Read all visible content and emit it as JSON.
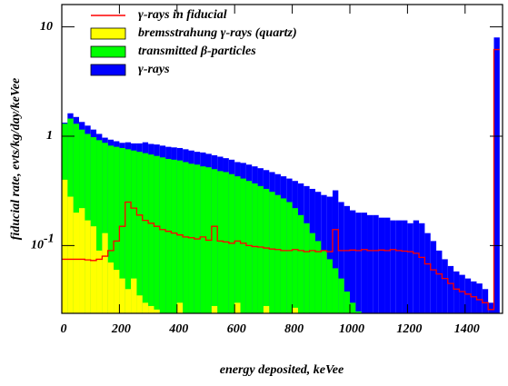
{
  "chart_data": {
    "type": "histogram",
    "xlabel": "energy deposited, keVee",
    "ylabel": "fiducial rate, evts/kg/day/keVee",
    "log_y": true,
    "legend": "upper left",
    "xlim": [
      0,
      1530
    ],
    "ylim": [
      0.024,
      16
    ],
    "xticks": [
      0,
      200,
      400,
      600,
      800,
      1000,
      1200,
      1400
    ],
    "yticks": [
      {
        "value": 0.1,
        "label": "10",
        "exponent": "-1"
      },
      {
        "value": 1,
        "label": "1"
      },
      {
        "value": 10,
        "label": "10"
      }
    ],
    "bins": [
      0,
      20,
      40,
      60,
      80,
      100,
      120,
      140,
      160,
      180,
      200,
      220,
      240,
      260,
      280,
      300,
      320,
      340,
      360,
      380,
      400,
      420,
      440,
      460,
      480,
      500,
      520,
      540,
      560,
      580,
      600,
      620,
      640,
      660,
      680,
      700,
      720,
      740,
      760,
      780,
      800,
      820,
      840,
      860,
      880,
      900,
      920,
      940,
      960,
      980,
      1000,
      1020,
      1040,
      1060,
      1080,
      1100,
      1120,
      1140,
      1160,
      1180,
      1200,
      1220,
      1240,
      1260,
      1280,
      1300,
      1320,
      1340,
      1360,
      1380,
      1400,
      1420,
      1440,
      1460,
      1480,
      1500,
      1520
    ],
    "series": [
      {
        "name": "γ-rays",
        "color": "#0000ff",
        "style": "fill",
        "values": [
          1.33,
          1.62,
          1.5,
          1.35,
          1.25,
          1.15,
          1.05,
          0.97,
          0.93,
          0.9,
          0.87,
          0.88,
          0.86,
          0.86,
          0.88,
          0.85,
          0.84,
          0.82,
          0.8,
          0.79,
          0.78,
          0.76,
          0.74,
          0.72,
          0.71,
          0.69,
          0.67,
          0.65,
          0.63,
          0.61,
          0.58,
          0.57,
          0.55,
          0.53,
          0.51,
          0.49,
          0.47,
          0.45,
          0.43,
          0.41,
          0.39,
          0.37,
          0.35,
          0.33,
          0.31,
          0.29,
          0.28,
          0.32,
          0.25,
          0.23,
          0.21,
          0.2,
          0.2,
          0.19,
          0.19,
          0.18,
          0.18,
          0.17,
          0.17,
          0.17,
          0.16,
          0.17,
          0.16,
          0.13,
          0.11,
          0.09,
          0.075,
          0.065,
          0.058,
          0.054,
          0.05,
          0.047,
          0.045,
          0.04,
          0.03,
          8.0
        ]
      },
      {
        "name": "transmitted β-particles",
        "color": "#00ff00",
        "style": "fill",
        "values": [
          1.3,
          1.45,
          1.3,
          1.15,
          1.05,
          0.98,
          0.92,
          0.87,
          0.82,
          0.8,
          0.78,
          0.76,
          0.74,
          0.72,
          0.7,
          0.68,
          0.66,
          0.64,
          0.62,
          0.61,
          0.6,
          0.58,
          0.56,
          0.55,
          0.53,
          0.52,
          0.5,
          0.48,
          0.47,
          0.45,
          0.43,
          0.41,
          0.39,
          0.37,
          0.35,
          0.33,
          0.31,
          0.29,
          0.27,
          0.25,
          0.22,
          0.19,
          0.16,
          0.13,
          0.11,
          0.09,
          0.075,
          0.062,
          0.05,
          0.038,
          0.03,
          0.025,
          null,
          null,
          null,
          null,
          null,
          null,
          null,
          null,
          null,
          null,
          null,
          null,
          null,
          null,
          null,
          null,
          null,
          null,
          null,
          null,
          null,
          null,
          null,
          null
        ]
      },
      {
        "name": "bremsstrahung γ-rays (quartz)",
        "color": "#ffff00",
        "style": "fill",
        "values": [
          0.4,
          0.28,
          0.2,
          0.22,
          0.17,
          0.15,
          0.09,
          0.13,
          0.07,
          0.06,
          0.05,
          0.04,
          0.05,
          0.035,
          0.03,
          0.028,
          0.026,
          null,
          null,
          null,
          0.03,
          null,
          null,
          null,
          null,
          null,
          0.028,
          null,
          null,
          null,
          0.03,
          null,
          null,
          null,
          null,
          0.028,
          null,
          null,
          null,
          null,
          0.027,
          null,
          null,
          null,
          null,
          null,
          null,
          null,
          null,
          null,
          null,
          null,
          null,
          null,
          null,
          null,
          null,
          null,
          null,
          null,
          null,
          null,
          null,
          null,
          null,
          null,
          null,
          null,
          null,
          null,
          null,
          null,
          null,
          null,
          null,
          null
        ]
      },
      {
        "name": "γ-rays in fiducial",
        "color": "#ff0000",
        "style": "step",
        "values": [
          0.075,
          0.075,
          0.075,
          0.075,
          0.074,
          0.073,
          0.075,
          0.08,
          0.09,
          0.11,
          0.15,
          0.25,
          0.22,
          0.19,
          0.17,
          0.16,
          0.15,
          0.14,
          0.135,
          0.13,
          0.125,
          0.12,
          0.118,
          0.115,
          0.12,
          0.112,
          0.15,
          0.11,
          0.108,
          0.105,
          0.11,
          0.105,
          0.1,
          0.098,
          0.097,
          0.095,
          0.093,
          0.092,
          0.09,
          0.09,
          0.092,
          0.09,
          0.088,
          0.09,
          0.088,
          0.09,
          0.088,
          0.14,
          0.09,
          0.09,
          0.091,
          0.09,
          0.092,
          0.09,
          0.09,
          0.091,
          0.09,
          0.092,
          0.09,
          0.089,
          0.088,
          0.085,
          0.078,
          0.068,
          0.06,
          0.055,
          0.05,
          0.045,
          0.04,
          0.038,
          0.036,
          0.034,
          0.032,
          0.03,
          0.026,
          6.2
        ]
      }
    ]
  }
}
